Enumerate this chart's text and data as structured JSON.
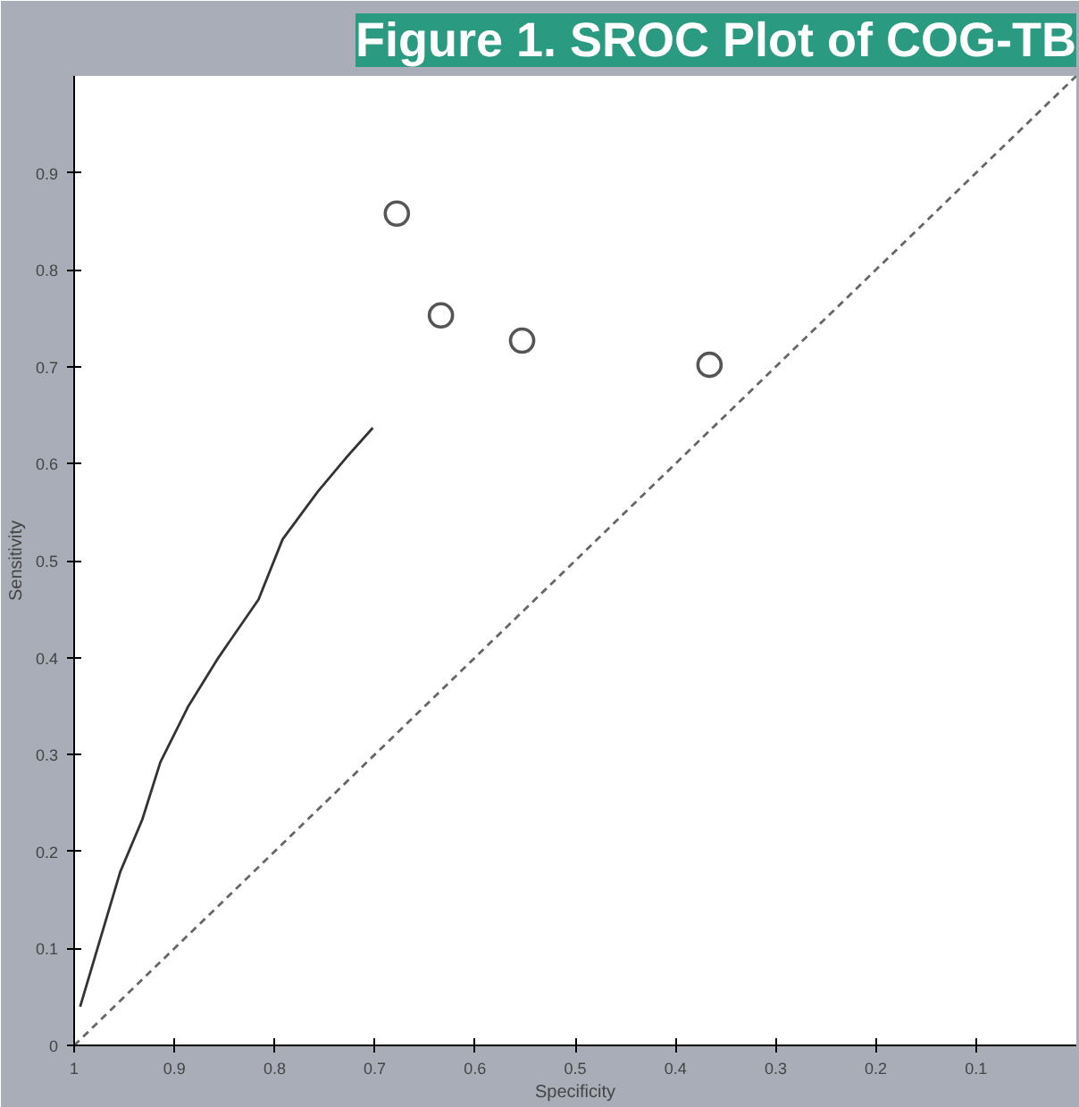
{
  "chart_data": {
    "type": "scatter",
    "title": "Figure 1. SROC Plot of COG-TB",
    "xlabel": "Specificity",
    "ylabel": "Sensitivity",
    "xlim": [
      1,
      0
    ],
    "ylim": [
      0,
      1
    ],
    "xticks": [
      1,
      0.9,
      0.8,
      0.7,
      0.6,
      0.5,
      0.4,
      0.3,
      0.2,
      0.1
    ],
    "yticks": [
      0,
      0.1,
      0.2,
      0.3,
      0.4,
      0.5,
      0.6,
      0.7,
      0.8,
      0.9
    ],
    "grid": false,
    "series": [
      {
        "marker": "circle",
        "color": "#555555",
        "x": [
          0.678,
          0.634,
          0.553,
          0.366
        ],
        "values": [
          0.858,
          0.753,
          0.727,
          0.702
        ]
      },
      {
        "type": "line",
        "line_style": "solid",
        "color": "#333333",
        "x": [
          0.994,
          0.954,
          0.932,
          0.914,
          0.886,
          0.856,
          0.816,
          0.792,
          0.757,
          0.727,
          0.702
        ],
        "values": [
          0.04,
          0.179,
          0.233,
          0.292,
          0.35,
          0.4,
          0.46,
          0.522,
          0.571,
          0.608,
          0.637
        ]
      },
      {
        "type": "line",
        "line_style": "dashed",
        "color": "#666666",
        "x": [
          1,
          0
        ],
        "values": [
          0,
          1
        ]
      }
    ]
  }
}
